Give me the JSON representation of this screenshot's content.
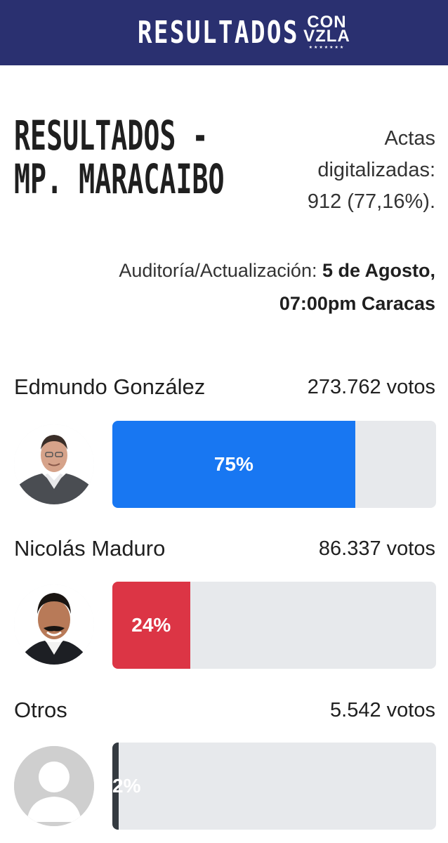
{
  "header": {
    "title": "RESULTADOS",
    "logo": {
      "line1": "CON",
      "line2": "VZLA",
      "stars": "★★★★★★★"
    }
  },
  "summary": {
    "title_line1": "RESULTADOS -",
    "title_line2": "MP. MARACAIBO",
    "actas_line1": "Actas",
    "actas_line2": "digitalizadas:",
    "actas_line3": "912 (77,16%).",
    "audit_label": "Auditoría/Actualización: ",
    "audit_date": "5 de Agosto,",
    "audit_time": "07:00pm Caracas"
  },
  "candidates": [
    {
      "name": "Edmundo González",
      "votes": "273.762 votos",
      "percent_label": "75%",
      "percent": 75,
      "color": "#1877f2"
    },
    {
      "name": "Nicolás Maduro",
      "votes": "86.337 votos",
      "percent_label": "24%",
      "percent": 24,
      "color": "#dc3545"
    },
    {
      "name": "Otros",
      "votes": "5.542 votos",
      "percent_label": "2%",
      "percent": 2,
      "color": "#343a40"
    }
  ]
}
